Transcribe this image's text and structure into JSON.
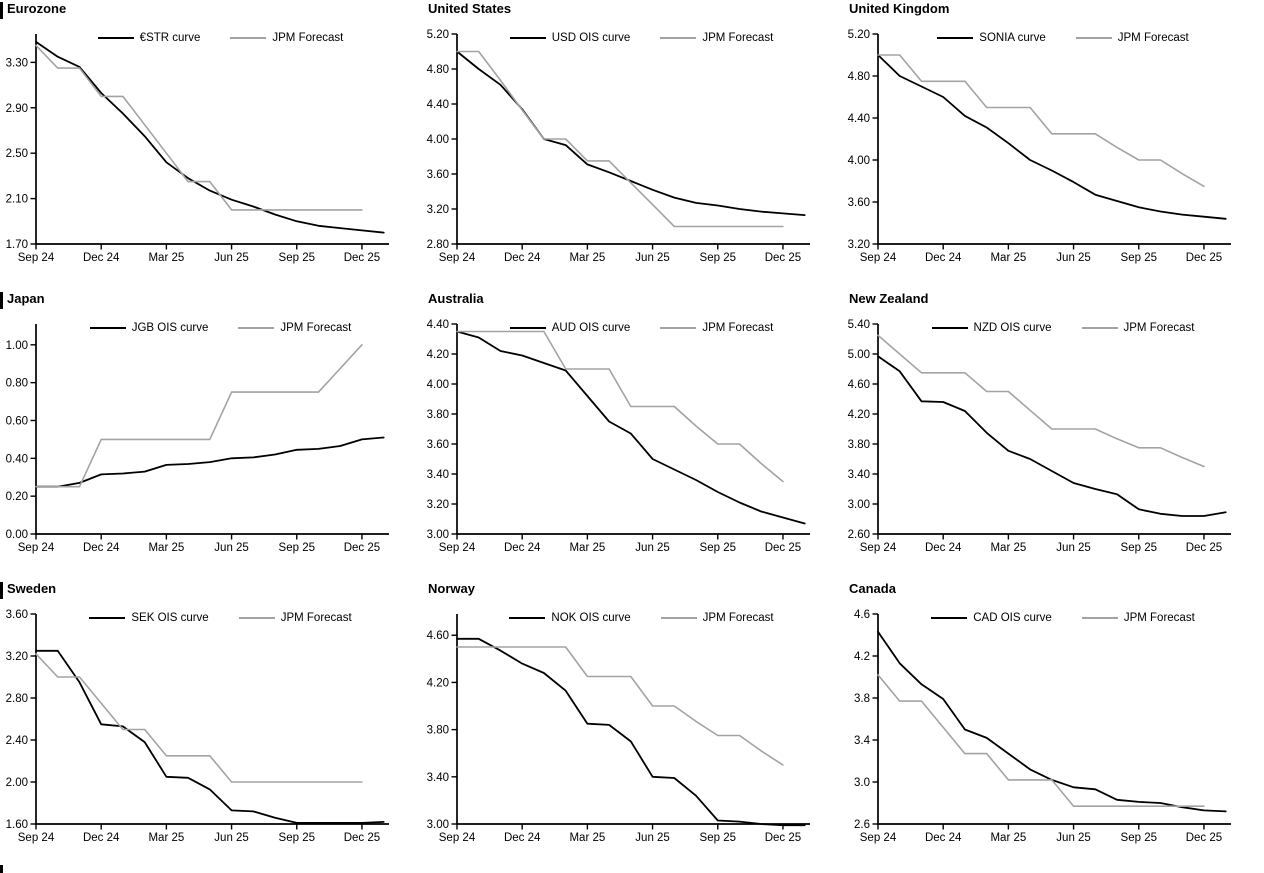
{
  "page": {
    "description": "3x3 grid of policy-rate forecast line charts"
  },
  "x_axis": {
    "tick_labels": [
      "Sep 24",
      "Dec 24",
      "Mar 25",
      "Jun 25",
      "Sep 25",
      "Dec 25"
    ],
    "tick_months": [
      0,
      3,
      6,
      9,
      12,
      15
    ]
  },
  "colors": {
    "curve": "#000000",
    "forecast": "#a3a3a3",
    "axis": "#000000"
  },
  "chart_data": [
    {
      "type": "line",
      "title": "Eurozone",
      "edge_bar": true,
      "y_tick_labels": [
        "1.70",
        "2.10",
        "2.50",
        "2.90",
        "3.30"
      ],
      "y_min": 1.7,
      "y_max": 3.55,
      "grid": false,
      "legend_position": "top",
      "series": [
        {
          "name": "€STR curve",
          "color": "#000000",
          "line_width": 1.8,
          "values": [
            3.48,
            3.35,
            3.26,
            3.03,
            2.85,
            2.65,
            2.42,
            2.28,
            2.17,
            2.09,
            2.03,
            1.96,
            1.9,
            1.86,
            1.84,
            1.82,
            1.8
          ]
        },
        {
          "name": "JPM Forecast",
          "color": "#a3a3a3",
          "line_width": 1.6,
          "values": [
            3.45,
            3.25,
            3.25,
            3.0,
            3.0,
            2.75,
            2.5,
            2.25,
            2.25,
            2.0,
            2.0,
            2.0,
            2.0,
            2.0,
            2.0,
            2.0
          ]
        }
      ]
    },
    {
      "type": "line",
      "title": "United States",
      "edge_bar": false,
      "y_tick_labels": [
        "2.80",
        "3.20",
        "3.60",
        "4.00",
        "4.40",
        "4.80",
        "5.20"
      ],
      "y_min": 2.8,
      "y_max": 5.2,
      "grid": false,
      "legend_position": "top",
      "series": [
        {
          "name": "USD OIS curve",
          "color": "#000000",
          "line_width": 1.8,
          "values": [
            5.0,
            4.8,
            4.62,
            4.34,
            4.0,
            3.93,
            3.71,
            3.62,
            3.52,
            3.42,
            3.33,
            3.27,
            3.24,
            3.2,
            3.17,
            3.15,
            3.13
          ]
        },
        {
          "name": "JPM Forecast",
          "color": "#a3a3a3",
          "line_width": 1.6,
          "values": [
            5.0,
            5.0,
            4.67,
            4.33,
            4.0,
            4.0,
            3.75,
            3.75,
            3.5,
            3.25,
            3.0,
            3.0,
            3.0,
            3.0,
            3.0,
            3.0
          ]
        }
      ]
    },
    {
      "type": "line",
      "title": "United Kingdom",
      "edge_bar": false,
      "y_tick_labels": [
        "3.20",
        "3.60",
        "4.00",
        "4.40",
        "4.80",
        "5.20"
      ],
      "y_min": 3.2,
      "y_max": 5.2,
      "grid": false,
      "legend_position": "top",
      "series": [
        {
          "name": "SONIA curve",
          "color": "#000000",
          "line_width": 1.8,
          "values": [
            5.0,
            4.8,
            4.7,
            4.6,
            4.42,
            4.31,
            4.16,
            4.0,
            3.9,
            3.79,
            3.67,
            3.61,
            3.55,
            3.51,
            3.48,
            3.46,
            3.44
          ]
        },
        {
          "name": "JPM Forecast",
          "color": "#a3a3a3",
          "line_width": 1.6,
          "values": [
            5.0,
            5.0,
            4.75,
            4.75,
            4.75,
            4.5,
            4.5,
            4.5,
            4.25,
            4.25,
            4.25,
            4.12,
            4.0,
            4.0,
            3.87,
            3.75
          ]
        }
      ]
    },
    {
      "type": "line",
      "title": "Japan",
      "edge_bar": true,
      "y_tick_labels": [
        "0.00",
        "0.20",
        "0.40",
        "0.60",
        "0.80",
        "1.00"
      ],
      "y_min": 0.0,
      "y_max": 1.11,
      "grid": false,
      "legend_position": "top",
      "series": [
        {
          "name": "JGB OIS curve",
          "color": "#000000",
          "line_width": 1.8,
          "values": [
            0.25,
            0.25,
            0.27,
            0.315,
            0.32,
            0.33,
            0.365,
            0.37,
            0.38,
            0.4,
            0.405,
            0.42,
            0.445,
            0.45,
            0.465,
            0.5,
            0.51
          ]
        },
        {
          "name": "JPM Forecast",
          "color": "#a3a3a3",
          "line_width": 1.6,
          "values": [
            0.25,
            0.25,
            0.25,
            0.5,
            0.5,
            0.5,
            0.5,
            0.5,
            0.5,
            0.75,
            0.75,
            0.75,
            0.75,
            0.75,
            0.875,
            1.0
          ]
        }
      ]
    },
    {
      "type": "line",
      "title": "Australia",
      "edge_bar": false,
      "y_tick_labels": [
        "3.00",
        "3.20",
        "3.40",
        "3.60",
        "3.80",
        "4.00",
        "4.20",
        "4.40"
      ],
      "y_min": 3.0,
      "y_max": 4.4,
      "grid": false,
      "legend_position": "top",
      "series": [
        {
          "name": "AUD OIS curve",
          "color": "#000000",
          "line_width": 1.8,
          "values": [
            4.35,
            4.31,
            4.22,
            4.19,
            4.14,
            4.09,
            3.92,
            3.75,
            3.67,
            3.5,
            3.43,
            3.36,
            3.28,
            3.21,
            3.15,
            3.11,
            3.07
          ]
        },
        {
          "name": "JPM Forecast",
          "color": "#a3a3a3",
          "line_width": 1.6,
          "values": [
            4.35,
            4.35,
            4.35,
            4.35,
            4.35,
            4.1,
            4.1,
            4.1,
            3.85,
            3.85,
            3.85,
            3.72,
            3.6,
            3.6,
            3.47,
            3.35
          ]
        }
      ]
    },
    {
      "type": "line",
      "title": "New Zealand",
      "edge_bar": false,
      "y_tick_labels": [
        "2.60",
        "3.00",
        "3.40",
        "3.80",
        "4.20",
        "4.60",
        "5.00",
        "5.40"
      ],
      "y_min": 2.6,
      "y_max": 5.4,
      "grid": false,
      "legend_position": "top",
      "series": [
        {
          "name": "NZD OIS curve",
          "color": "#000000",
          "line_width": 1.8,
          "values": [
            4.97,
            4.77,
            4.37,
            4.36,
            4.24,
            3.95,
            3.71,
            3.6,
            3.44,
            3.28,
            3.2,
            3.13,
            2.93,
            2.87,
            2.84,
            2.84,
            2.89
          ]
        },
        {
          "name": "JPM Forecast",
          "color": "#a3a3a3",
          "line_width": 1.6,
          "values": [
            5.25,
            5.0,
            4.75,
            4.75,
            4.75,
            4.5,
            4.5,
            4.25,
            4.0,
            4.0,
            4.0,
            3.87,
            3.75,
            3.75,
            3.62,
            3.5
          ]
        }
      ]
    },
    {
      "type": "line",
      "title": "Sweden",
      "edge_bar": true,
      "y_tick_labels": [
        "1.60",
        "2.00",
        "2.40",
        "2.80",
        "3.20",
        "3.60"
      ],
      "y_min": 1.6,
      "y_max": 3.6,
      "grid": false,
      "legend_position": "top",
      "series": [
        {
          "name": "SEK OIS curve",
          "color": "#000000",
          "line_width": 1.8,
          "values": [
            3.25,
            3.25,
            2.95,
            2.55,
            2.53,
            2.38,
            2.05,
            2.04,
            1.93,
            1.73,
            1.72,
            1.66,
            1.61,
            1.61,
            1.61,
            1.61,
            1.62
          ]
        },
        {
          "name": "JPM Forecast",
          "color": "#a3a3a3",
          "line_width": 1.6,
          "values": [
            3.22,
            3.0,
            3.0,
            2.75,
            2.5,
            2.5,
            2.25,
            2.25,
            2.25,
            2.0,
            2.0,
            2.0,
            2.0,
            2.0,
            2.0,
            2.0
          ]
        }
      ]
    },
    {
      "type": "line",
      "title": "Norway",
      "edge_bar": false,
      "y_tick_labels": [
        "3.00",
        "3.40",
        "3.80",
        "4.20",
        "4.60"
      ],
      "y_min": 3.0,
      "y_max": 4.78,
      "grid": false,
      "legend_position": "top",
      "series": [
        {
          "name": "NOK OIS curve",
          "color": "#000000",
          "line_width": 1.8,
          "values": [
            4.57,
            4.57,
            4.47,
            4.36,
            4.28,
            4.13,
            3.85,
            3.84,
            3.7,
            3.4,
            3.39,
            3.24,
            3.03,
            3.02,
            3.0,
            2.99,
            2.99
          ]
        },
        {
          "name": "JPM Forecast",
          "color": "#a3a3a3",
          "line_width": 1.6,
          "values": [
            4.5,
            4.5,
            4.5,
            4.5,
            4.5,
            4.5,
            4.25,
            4.25,
            4.25,
            4.0,
            4.0,
            3.87,
            3.75,
            3.75,
            3.62,
            3.5
          ]
        }
      ]
    },
    {
      "type": "line",
      "title": "Canada",
      "edge_bar": false,
      "y_tick_labels": [
        "2.6",
        "3.0",
        "3.4",
        "3.8",
        "4.2",
        "4.6"
      ],
      "y_min": 2.6,
      "y_max": 4.6,
      "grid": false,
      "legend_position": "top",
      "series": [
        {
          "name": "CAD OIS curve",
          "color": "#000000",
          "line_width": 1.8,
          "values": [
            4.43,
            4.13,
            3.93,
            3.79,
            3.5,
            3.42,
            3.27,
            3.12,
            3.02,
            2.95,
            2.93,
            2.83,
            2.81,
            2.8,
            2.76,
            2.73,
            2.72
          ]
        },
        {
          "name": "JPM Forecast",
          "color": "#a3a3a3",
          "line_width": 1.6,
          "values": [
            4.02,
            3.77,
            3.77,
            3.52,
            3.27,
            3.27,
            3.02,
            3.02,
            3.02,
            2.77,
            2.77,
            2.77,
            2.77,
            2.77,
            2.77,
            2.77
          ]
        }
      ]
    }
  ]
}
